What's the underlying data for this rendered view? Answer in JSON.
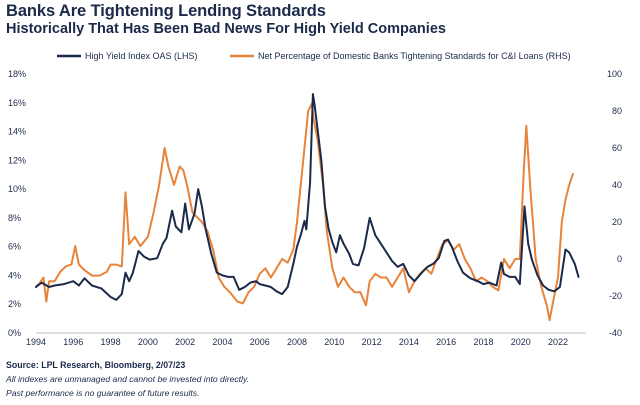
{
  "title": "Banks Are Tightening Lending Standards",
  "subtitle": "Historically That Has Been Bad News For High Yield Companies",
  "source": "Source: LPL Research, Bloomberg, 2/07/23",
  "note1": "All indexes are unmanaged and cannot be invested into directly.",
  "note2": "Past performance is no guarantee of future results.",
  "colors": {
    "navy": "#1b2a4a",
    "orange": "#e8833a",
    "axis": "#bfbfbf"
  },
  "chart_data": {
    "type": "line",
    "x_range": [
      1994,
      2023.5
    ],
    "x_tick_labels": [
      "1994",
      "1996",
      "1998",
      "2000",
      "2002",
      "2004",
      "2006",
      "2008",
      "2010",
      "2012",
      "2014",
      "2016",
      "2018",
      "2020",
      "2022"
    ],
    "y_left_range": [
      0,
      18
    ],
    "y_left_tick_labels": [
      "0%",
      "2%",
      "4%",
      "6%",
      "8%",
      "10%",
      "12%",
      "14%",
      "16%",
      "18%"
    ],
    "y_right_range": [
      -40,
      100
    ],
    "y_right_tick_labels": [
      "-40",
      "-20",
      "0",
      "20",
      "40",
      "60",
      "80",
      "100"
    ],
    "series": [
      {
        "name": "High Yield Index OAS (LHS)",
        "axis": "left",
        "color": "#1b2a4a",
        "points": [
          [
            1994.0,
            3.2
          ],
          [
            1994.3,
            3.5
          ],
          [
            1994.7,
            3.2
          ],
          [
            1995.0,
            3.3
          ],
          [
            1995.5,
            3.4
          ],
          [
            1996.0,
            3.6
          ],
          [
            1996.3,
            3.3
          ],
          [
            1996.6,
            3.8
          ],
          [
            1997.0,
            3.3
          ],
          [
            1997.5,
            3.1
          ],
          [
            1998.0,
            2.5
          ],
          [
            1998.3,
            2.3
          ],
          [
            1998.6,
            2.7
          ],
          [
            1998.8,
            4.2
          ],
          [
            1999.0,
            3.6
          ],
          [
            1999.2,
            4.2
          ],
          [
            1999.5,
            5.7
          ],
          [
            1999.8,
            5.3
          ],
          [
            2000.1,
            5.1
          ],
          [
            2000.5,
            5.2
          ],
          [
            2000.8,
            6.2
          ],
          [
            2001.0,
            6.6
          ],
          [
            2001.3,
            8.5
          ],
          [
            2001.5,
            7.4
          ],
          [
            2001.8,
            7.0
          ],
          [
            2002.0,
            9.0
          ],
          [
            2002.2,
            7.2
          ],
          [
            2002.5,
            8.3
          ],
          [
            2002.7,
            10.0
          ],
          [
            2002.9,
            8.8
          ],
          [
            2003.1,
            7.2
          ],
          [
            2003.4,
            5.5
          ],
          [
            2003.7,
            4.2
          ],
          [
            2004.0,
            4.0
          ],
          [
            2004.3,
            3.9
          ],
          [
            2004.6,
            3.9
          ],
          [
            2004.9,
            3.0
          ],
          [
            2005.2,
            3.2
          ],
          [
            2005.5,
            3.5
          ],
          [
            2005.8,
            3.6
          ],
          [
            2006.0,
            3.4
          ],
          [
            2006.3,
            3.3
          ],
          [
            2006.6,
            3.2
          ],
          [
            2006.9,
            2.9
          ],
          [
            2007.2,
            2.7
          ],
          [
            2007.5,
            3.2
          ],
          [
            2007.8,
            4.8
          ],
          [
            2008.0,
            6.0
          ],
          [
            2008.2,
            6.8
          ],
          [
            2008.4,
            7.8
          ],
          [
            2008.5,
            7.2
          ],
          [
            2008.7,
            10.5
          ],
          [
            2008.85,
            16.6
          ],
          [
            2008.95,
            15.8
          ],
          [
            2009.1,
            14.2
          ],
          [
            2009.3,
            12.0
          ],
          [
            2009.5,
            8.8
          ],
          [
            2009.7,
            7.2
          ],
          [
            2009.9,
            6.3
          ],
          [
            2010.1,
            5.6
          ],
          [
            2010.3,
            6.8
          ],
          [
            2010.5,
            6.2
          ],
          [
            2010.8,
            5.5
          ],
          [
            2011.0,
            4.8
          ],
          [
            2011.3,
            4.7
          ],
          [
            2011.6,
            5.9
          ],
          [
            2011.9,
            8.0
          ],
          [
            2012.2,
            6.8
          ],
          [
            2012.5,
            6.2
          ],
          [
            2012.8,
            5.6
          ],
          [
            2013.1,
            5.0
          ],
          [
            2013.4,
            4.6
          ],
          [
            2013.7,
            4.8
          ],
          [
            2014.0,
            4.0
          ],
          [
            2014.3,
            3.6
          ],
          [
            2014.7,
            4.2
          ],
          [
            2015.0,
            4.6
          ],
          [
            2015.3,
            4.8
          ],
          [
            2015.6,
            5.2
          ],
          [
            2015.9,
            6.4
          ],
          [
            2016.1,
            6.5
          ],
          [
            2016.3,
            6.0
          ],
          [
            2016.6,
            5.0
          ],
          [
            2016.9,
            4.2
          ],
          [
            2017.3,
            3.8
          ],
          [
            2017.7,
            3.6
          ],
          [
            2018.0,
            3.4
          ],
          [
            2018.3,
            3.5
          ],
          [
            2018.7,
            3.3
          ],
          [
            2018.95,
            4.9
          ],
          [
            2019.1,
            4.1
          ],
          [
            2019.4,
            3.9
          ],
          [
            2019.7,
            3.9
          ],
          [
            2019.95,
            3.4
          ],
          [
            2020.2,
            8.8
          ],
          [
            2020.4,
            6.2
          ],
          [
            2020.6,
            5.1
          ],
          [
            2020.9,
            4.0
          ],
          [
            2021.2,
            3.3
          ],
          [
            2021.5,
            3.0
          ],
          [
            2021.8,
            2.9
          ],
          [
            2022.1,
            3.2
          ],
          [
            2022.4,
            5.8
          ],
          [
            2022.6,
            5.6
          ],
          [
            2022.9,
            4.8
          ],
          [
            2023.1,
            3.9
          ]
        ]
      },
      {
        "name": "Net Percentage of Domestic Banks Tightening Standards for C&I Loans (RHS)",
        "axis": "right",
        "color": "#e8833a",
        "points": [
          [
            1994.0,
            -15
          ],
          [
            1994.2,
            -13
          ],
          [
            1994.4,
            -10
          ],
          [
            1994.55,
            -23
          ],
          [
            1994.7,
            -12
          ],
          [
            1995.0,
            -12
          ],
          [
            1995.3,
            -7
          ],
          [
            1995.6,
            -4
          ],
          [
            1995.9,
            -3
          ],
          [
            1996.1,
            7
          ],
          [
            1996.3,
            -3
          ],
          [
            1996.6,
            -6
          ],
          [
            1997.0,
            -9
          ],
          [
            1997.4,
            -9
          ],
          [
            1997.8,
            -7
          ],
          [
            1998.0,
            -3
          ],
          [
            1998.3,
            -3
          ],
          [
            1998.6,
            -4
          ],
          [
            1998.8,
            36
          ],
          [
            1999.0,
            8
          ],
          [
            1999.3,
            12
          ],
          [
            1999.6,
            7
          ],
          [
            2000.0,
            12
          ],
          [
            2000.3,
            25
          ],
          [
            2000.6,
            40
          ],
          [
            2000.9,
            60
          ],
          [
            2001.1,
            50
          ],
          [
            2001.4,
            40
          ],
          [
            2001.7,
            50
          ],
          [
            2001.9,
            48
          ],
          [
            2002.1,
            40
          ],
          [
            2002.4,
            25
          ],
          [
            2002.7,
            22
          ],
          [
            2002.9,
            20
          ],
          [
            2003.2,
            15
          ],
          [
            2003.5,
            5
          ],
          [
            2003.8,
            -10
          ],
          [
            2004.1,
            -15
          ],
          [
            2004.4,
            -18
          ],
          [
            2004.8,
            -23
          ],
          [
            2005.1,
            -24
          ],
          [
            2005.4,
            -18
          ],
          [
            2005.7,
            -15
          ],
          [
            2006.0,
            -8
          ],
          [
            2006.3,
            -5
          ],
          [
            2006.6,
            -10
          ],
          [
            2006.9,
            -5
          ],
          [
            2007.2,
            0
          ],
          [
            2007.5,
            -2
          ],
          [
            2007.8,
            5
          ],
          [
            2008.0,
            20
          ],
          [
            2008.3,
            50
          ],
          [
            2008.6,
            80
          ],
          [
            2008.8,
            84
          ],
          [
            2008.9,
            75
          ],
          [
            2009.1,
            65
          ],
          [
            2009.4,
            40
          ],
          [
            2009.6,
            15
          ],
          [
            2009.9,
            -5
          ],
          [
            2010.2,
            -15
          ],
          [
            2010.5,
            -10
          ],
          [
            2010.8,
            -15
          ],
          [
            2011.1,
            -18
          ],
          [
            2011.4,
            -18
          ],
          [
            2011.7,
            -25
          ],
          [
            2011.9,
            -12
          ],
          [
            2012.2,
            -8
          ],
          [
            2012.5,
            -10
          ],
          [
            2012.8,
            -10
          ],
          [
            2013.1,
            -15
          ],
          [
            2013.4,
            -10
          ],
          [
            2013.7,
            -5
          ],
          [
            2014.0,
            -18
          ],
          [
            2014.3,
            -12
          ],
          [
            2014.6,
            -8
          ],
          [
            2014.9,
            -5
          ],
          [
            2015.2,
            -8
          ],
          [
            2015.5,
            0
          ],
          [
            2015.8,
            8
          ],
          [
            2016.1,
            10
          ],
          [
            2016.4,
            5
          ],
          [
            2016.7,
            8
          ],
          [
            2017.0,
            0
          ],
          [
            2017.3,
            -5
          ],
          [
            2017.6,
            -12
          ],
          [
            2017.9,
            -10
          ],
          [
            2018.2,
            -12
          ],
          [
            2018.5,
            -15
          ],
          [
            2018.8,
            -17
          ],
          [
            2019.1,
            0
          ],
          [
            2019.4,
            -5
          ],
          [
            2019.7,
            0
          ],
          [
            2019.95,
            0
          ],
          [
            2020.15,
            45
          ],
          [
            2020.3,
            72
          ],
          [
            2020.5,
            40
          ],
          [
            2020.8,
            0
          ],
          [
            2021.1,
            -15
          ],
          [
            2021.4,
            -25
          ],
          [
            2021.55,
            -33
          ],
          [
            2021.7,
            -25
          ],
          [
            2022.0,
            -10
          ],
          [
            2022.2,
            20
          ],
          [
            2022.4,
            32
          ],
          [
            2022.6,
            40
          ],
          [
            2022.8,
            46
          ]
        ]
      }
    ]
  }
}
